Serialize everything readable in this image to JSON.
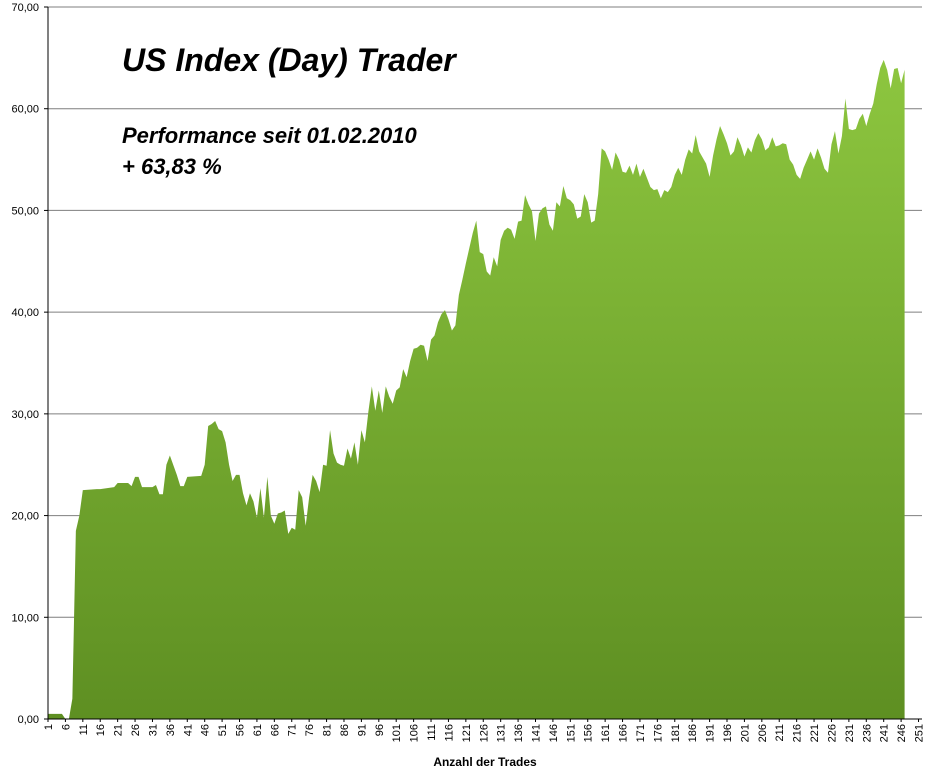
{
  "chart_data": {
    "type": "area",
    "title": "US Index (Day) Trader",
    "subtitle_line1": "Performance  seit  01.02.2010",
    "subtitle_line2": "+ 63,83 %",
    "xlabel": "Anzahl der Trades",
    "ylabel": "",
    "ylim": [
      0,
      70
    ],
    "yticks": [
      "0,00",
      "10,00",
      "20,00",
      "30,00",
      "40,00",
      "50,00",
      "60,00",
      "70,00"
    ],
    "xlim": [
      1,
      252
    ],
    "xticks": [
      1,
      6,
      11,
      16,
      21,
      26,
      31,
      36,
      41,
      46,
      51,
      56,
      61,
      66,
      71,
      76,
      81,
      86,
      91,
      96,
      101,
      106,
      111,
      116,
      121,
      126,
      131,
      136,
      141,
      146,
      151,
      156,
      161,
      166,
      171,
      176,
      181,
      186,
      191,
      196,
      201,
      206,
      211,
      216,
      221,
      226,
      231,
      236,
      241,
      246,
      251
    ],
    "grid": "horizontal",
    "color_top": "#8dc63f",
    "color_bottom": "#5e8f22",
    "series": [
      {
        "points": [
          [
            1,
            0.5
          ],
          [
            5,
            0.5
          ],
          [
            6,
            0
          ],
          [
            7,
            0
          ],
          [
            8,
            2
          ],
          [
            9,
            18.5
          ],
          [
            10,
            20
          ],
          [
            11,
            22.5
          ],
          [
            15,
            22.6
          ],
          [
            16,
            22.6
          ],
          [
            20,
            22.8
          ],
          [
            21,
            23.2
          ],
          [
            24,
            23.2
          ],
          [
            25,
            22.9
          ],
          [
            26,
            23.8
          ],
          [
            27,
            23.8
          ],
          [
            28,
            22.8
          ],
          [
            31,
            22.8
          ],
          [
            32,
            23
          ],
          [
            33,
            22.1
          ],
          [
            34,
            22.1
          ],
          [
            35,
            25
          ],
          [
            36,
            25.9
          ],
          [
            38,
            24
          ],
          [
            39,
            22.9
          ],
          [
            40,
            22.9
          ],
          [
            41,
            23.8
          ],
          [
            45,
            23.9
          ],
          [
            46,
            25
          ],
          [
            47,
            28.8
          ],
          [
            48,
            29
          ],
          [
            49,
            29.3
          ],
          [
            50,
            28.5
          ],
          [
            51,
            28.3
          ],
          [
            52,
            27.2
          ],
          [
            53,
            25
          ],
          [
            54,
            23.4
          ],
          [
            55,
            24
          ],
          [
            56,
            24
          ],
          [
            57,
            22.2
          ],
          [
            58,
            21
          ],
          [
            59,
            22.2
          ],
          [
            60,
            21.4
          ],
          [
            61,
            19.8
          ],
          [
            62,
            22.7
          ],
          [
            63,
            19.8
          ],
          [
            64,
            23.8
          ],
          [
            65,
            20
          ],
          [
            66,
            19.2
          ],
          [
            67,
            20.2
          ],
          [
            68,
            20.3
          ],
          [
            69,
            20.5
          ],
          [
            70,
            18.2
          ],
          [
            71,
            18.8
          ],
          [
            72,
            18.6
          ],
          [
            73,
            22.5
          ],
          [
            74,
            21.8
          ],
          [
            75,
            19
          ],
          [
            76,
            21.8
          ],
          [
            77,
            24
          ],
          [
            78,
            23.4
          ],
          [
            79,
            22.3
          ],
          [
            80,
            25
          ],
          [
            81,
            24.9
          ],
          [
            82,
            28.4
          ],
          [
            83,
            26.1
          ],
          [
            84,
            25.2
          ],
          [
            85,
            25
          ],
          [
            86,
            24.9
          ],
          [
            87,
            26.6
          ],
          [
            88,
            25.6
          ],
          [
            89,
            27.2
          ],
          [
            90,
            25
          ],
          [
            91,
            28.4
          ],
          [
            92,
            27.2
          ],
          [
            93,
            30.2
          ],
          [
            94,
            32.7
          ],
          [
            95,
            30.3
          ],
          [
            96,
            32.3
          ],
          [
            97,
            30.1
          ],
          [
            98,
            32.7
          ],
          [
            99,
            31.7
          ],
          [
            100,
            31
          ],
          [
            101,
            32.3
          ],
          [
            102,
            32.6
          ],
          [
            103,
            34.4
          ],
          [
            104,
            33.6
          ],
          [
            105,
            35.2
          ],
          [
            106,
            36.4
          ],
          [
            107,
            36.5
          ],
          [
            108,
            36.8
          ],
          [
            109,
            36.7
          ],
          [
            110,
            35.2
          ],
          [
            111,
            37.3
          ],
          [
            112,
            37.7
          ],
          [
            113,
            39
          ],
          [
            114,
            39.8
          ],
          [
            115,
            40.2
          ],
          [
            116,
            39.3
          ],
          [
            117,
            38.2
          ],
          [
            118,
            38.7
          ],
          [
            119,
            41.7
          ],
          [
            120,
            43.2
          ],
          [
            121,
            44.8
          ],
          [
            122,
            46.3
          ],
          [
            123,
            47.8
          ],
          [
            124,
            49
          ],
          [
            125,
            45.9
          ],
          [
            126,
            45.7
          ],
          [
            127,
            44
          ],
          [
            128,
            43.6
          ],
          [
            129,
            45.4
          ],
          [
            130,
            44.5
          ],
          [
            131,
            47.1
          ],
          [
            132,
            48
          ],
          [
            133,
            48.3
          ],
          [
            134,
            48.1
          ],
          [
            135,
            47.2
          ],
          [
            136,
            48.9
          ],
          [
            137,
            49
          ],
          [
            138,
            51.5
          ],
          [
            139,
            50.6
          ],
          [
            140,
            49.9
          ],
          [
            141,
            47
          ],
          [
            142,
            49.7
          ],
          [
            143,
            50.2
          ],
          [
            144,
            50.4
          ],
          [
            145,
            48.6
          ],
          [
            146,
            48
          ],
          [
            147,
            50.8
          ],
          [
            148,
            50.4
          ],
          [
            149,
            52.4
          ],
          [
            150,
            51.2
          ],
          [
            151,
            51
          ],
          [
            152,
            50.6
          ],
          [
            153,
            49.2
          ],
          [
            154,
            49.4
          ],
          [
            155,
            51.6
          ],
          [
            156,
            50.8
          ],
          [
            157,
            48.8
          ],
          [
            158,
            49
          ],
          [
            159,
            51.6
          ],
          [
            160,
            56.1
          ],
          [
            161,
            55.8
          ],
          [
            162,
            55
          ],
          [
            163,
            54
          ],
          [
            164,
            55.7
          ],
          [
            165,
            55
          ],
          [
            166,
            53.8
          ],
          [
            167,
            53.7
          ],
          [
            168,
            54.4
          ],
          [
            169,
            53.5
          ],
          [
            170,
            54.6
          ],
          [
            171,
            53.3
          ],
          [
            172,
            54.1
          ],
          [
            173,
            53.2
          ],
          [
            174,
            52.3
          ],
          [
            175,
            52
          ],
          [
            176,
            52.1
          ],
          [
            177,
            51.2
          ],
          [
            178,
            52
          ],
          [
            179,
            51.8
          ],
          [
            180,
            52.3
          ],
          [
            181,
            53.5
          ],
          [
            182,
            54.2
          ],
          [
            183,
            53.5
          ],
          [
            184,
            55
          ],
          [
            185,
            56
          ],
          [
            186,
            55.6
          ],
          [
            187,
            57.4
          ],
          [
            188,
            55.8
          ],
          [
            189,
            55.2
          ],
          [
            190,
            54.6
          ],
          [
            191,
            53.3
          ],
          [
            192,
            55.4
          ],
          [
            193,
            57
          ],
          [
            194,
            58.3
          ],
          [
            195,
            57.5
          ],
          [
            196,
            56.6
          ],
          [
            197,
            55.4
          ],
          [
            198,
            55.8
          ],
          [
            199,
            57.2
          ],
          [
            200,
            56.4
          ],
          [
            201,
            55.3
          ],
          [
            202,
            56.2
          ],
          [
            203,
            55.7
          ],
          [
            204,
            56.9
          ],
          [
            205,
            57.6
          ],
          [
            206,
            57
          ],
          [
            207,
            55.9
          ],
          [
            208,
            56.2
          ],
          [
            209,
            57.2
          ],
          [
            210,
            56.3
          ],
          [
            211,
            56.4
          ],
          [
            212,
            56.6
          ],
          [
            213,
            56.5
          ],
          [
            214,
            55
          ],
          [
            215,
            54.5
          ],
          [
            216,
            53.5
          ],
          [
            217,
            53.1
          ],
          [
            218,
            54.2
          ],
          [
            219,
            55
          ],
          [
            220,
            55.8
          ],
          [
            221,
            55
          ],
          [
            222,
            56.1
          ],
          [
            223,
            55.2
          ],
          [
            224,
            54.1
          ],
          [
            225,
            53.7
          ],
          [
            226,
            56.5
          ],
          [
            227,
            57.8
          ],
          [
            228,
            55.6
          ],
          [
            229,
            57.3
          ],
          [
            230,
            61
          ],
          [
            231,
            58
          ],
          [
            232,
            57.9
          ],
          [
            233,
            58
          ],
          [
            234,
            59
          ],
          [
            235,
            59.5
          ],
          [
            236,
            58.3
          ],
          [
            237,
            59.5
          ],
          [
            238,
            60.5
          ],
          [
            239,
            62.4
          ],
          [
            240,
            64
          ],
          [
            241,
            64.8
          ],
          [
            242,
            63.8
          ],
          [
            243,
            62
          ],
          [
            244,
            63.9
          ],
          [
            245,
            64
          ],
          [
            246,
            62.5
          ],
          [
            247,
            63.83
          ]
        ]
      }
    ]
  }
}
